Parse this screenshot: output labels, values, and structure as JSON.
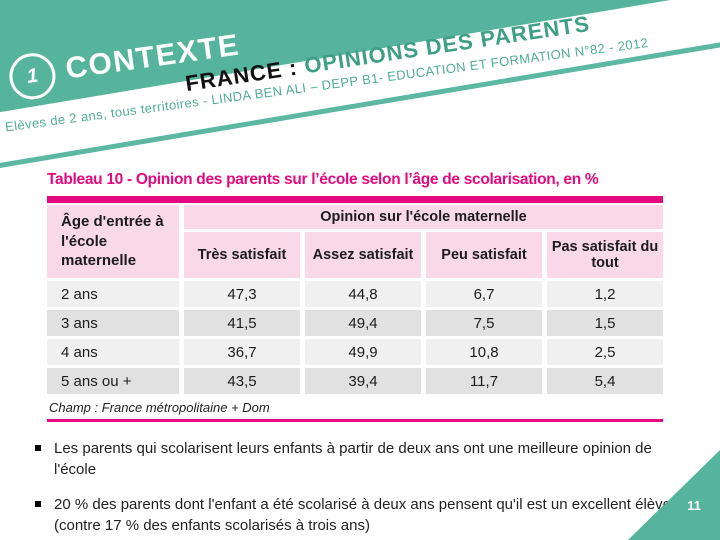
{
  "colors": {
    "teal": "#56B49C",
    "teal-deep": "#3F9E86",
    "teal-text": "#4FAD96",
    "teal-line": "#5CB8A2",
    "magenta": "#E5097F",
    "pink-bg": "#F9D8E8",
    "row-light": "#F1F0F1",
    "row-dark": "#E2E1E2"
  },
  "header": {
    "section_number": "1",
    "section_label": "CONTEXTE",
    "title_black": "FRANCE :",
    "title_teal": " OPINIONS DES PARENTS",
    "subtitle": "Elèves de 2 ans, tous territoires -  LINDA BEN ALI – DEPP B1- EDUCATION ET FORMATION N°82  - 2012"
  },
  "table": {
    "title": "Tableau 10 - Opinion des parents sur l’école selon l’âge de scolarisation, en %",
    "row_header": "Âge d'entrée à l'école maternelle",
    "group_header": "Opinion sur l'école maternelle",
    "columns": [
      "Très satisfait",
      "Assez satisfait",
      "Peu satisfait",
      "Pas satisfait du tout"
    ],
    "rows": [
      {
        "label": "2 ans",
        "values": [
          "47,3",
          "44,8",
          "6,7",
          "1,2"
        ]
      },
      {
        "label": "3 ans",
        "values": [
          "41,5",
          "49,4",
          "7,5",
          "1,5"
        ]
      },
      {
        "label": "4 ans",
        "values": [
          "36,7",
          "49,9",
          "10,8",
          "2,5"
        ]
      },
      {
        "label": "5 ans ou +",
        "values": [
          "43,5",
          "39,4",
          "11,7",
          "5,4"
        ]
      }
    ],
    "footnote": "Champ : France métropolitaine + Dom"
  },
  "chart_data": {
    "type": "table",
    "title": "Tableau 10 - Opinion des parents sur l’école selon l’âge de scolarisation, en %",
    "categories": [
      "2 ans",
      "3 ans",
      "4 ans",
      "5 ans ou +"
    ],
    "series": [
      {
        "name": "Très satisfait",
        "values": [
          47.3,
          41.5,
          36.7,
          43.5
        ]
      },
      {
        "name": "Assez satisfait",
        "values": [
          44.8,
          49.4,
          49.9,
          39.4
        ]
      },
      {
        "name": "Peu satisfait",
        "values": [
          6.7,
          7.5,
          10.8,
          11.7
        ]
      },
      {
        "name": "Pas satisfait du tout",
        "values": [
          1.2,
          1.5,
          2.5,
          5.4
        ]
      }
    ],
    "unit": "%"
  },
  "bullets": [
    "Les parents qui scolarisent leurs enfants à partir de deux ans ont une meilleure opinion de l'école",
    "20 % des parents dont l'enfant a été scolarisé à deux ans pensent qu'il est un excellent élève (contre 17 % des enfants scolarisés à trois ans)"
  ],
  "footer": {
    "page_number": "11"
  }
}
